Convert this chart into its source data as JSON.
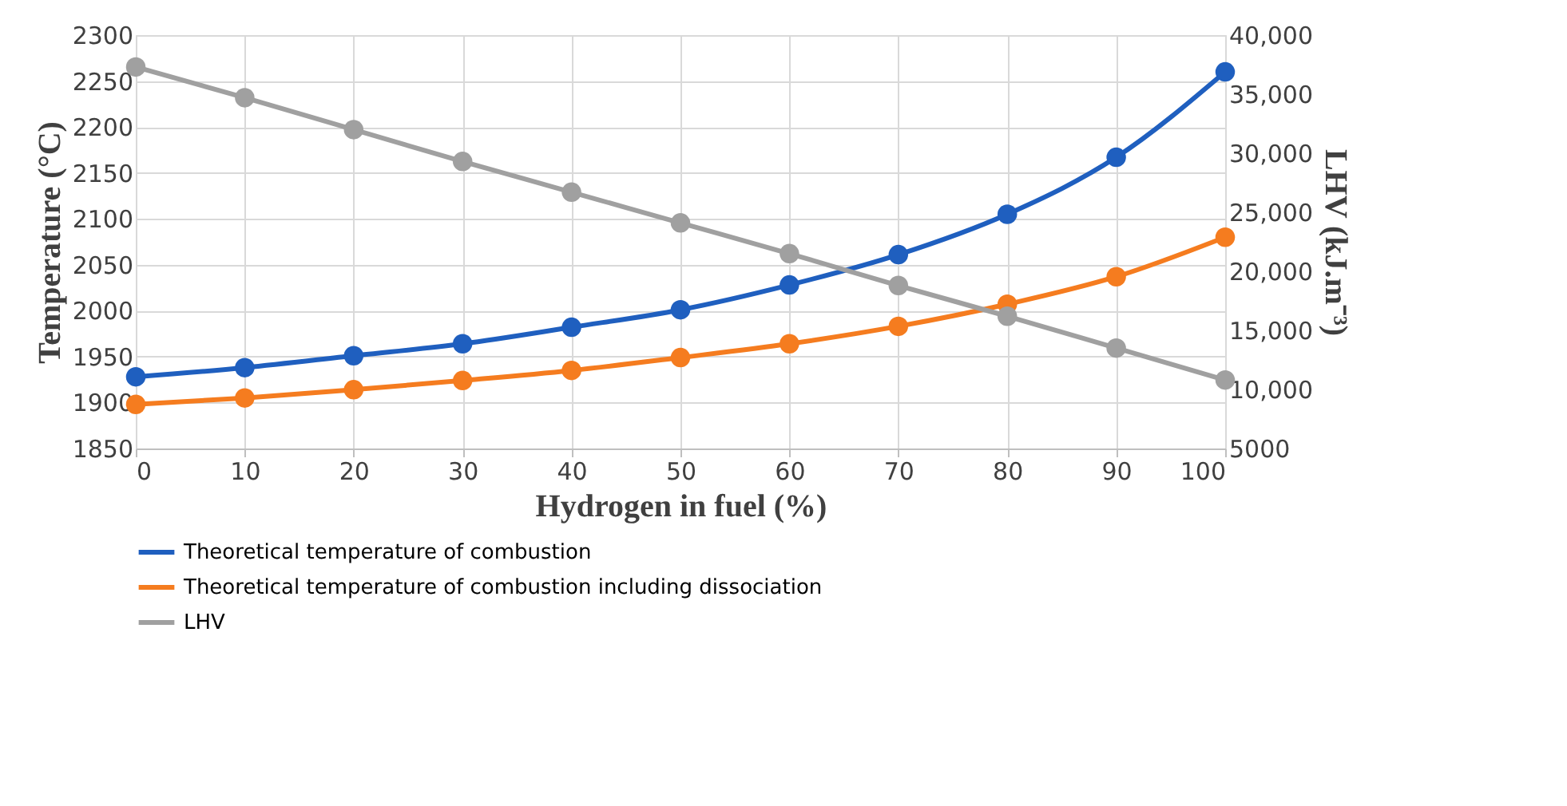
{
  "chart_data": {
    "type": "line",
    "xlabel": "Hydrogen in fuel (%)",
    "ylabel": "Temperature (°C)",
    "y2label": "LHV (kJ.m⁻³)",
    "x": [
      0,
      10,
      20,
      30,
      40,
      50,
      60,
      70,
      80,
      90,
      100
    ],
    "xlim": [
      0,
      100
    ],
    "xticks": [
      0,
      10,
      20,
      30,
      40,
      50,
      60,
      70,
      80,
      90,
      100
    ],
    "ylim": [
      1850,
      2300
    ],
    "yticks": [
      1850,
      1900,
      1950,
      2000,
      2050,
      2100,
      2150,
      2200,
      2250,
      2300
    ],
    "y2lim": [
      5000,
      40000
    ],
    "y2ticks": [
      5000,
      {
        "value": 10000,
        "label": "10,000"
      },
      {
        "value": 15000,
        "label": "15,000"
      },
      {
        "value": 20000,
        "label": "20,000"
      },
      {
        "value": 25000,
        "label": "25,000"
      },
      {
        "value": 30000,
        "label": "30,000"
      },
      {
        "value": 35000,
        "label": "35,000"
      },
      {
        "value": 40000,
        "label": "40,000"
      }
    ],
    "series": [
      {
        "name": "Theoretical temperature of combustion",
        "color": "#1f5fbf",
        "values": [
          1928,
          1938,
          1951,
          1964,
          1982,
          2001,
          2028,
          2061,
          2105,
          2167,
          2260
        ]
      },
      {
        "name": "Theoretical temperature of combustion including dissociation",
        "color": "#f57c1f",
        "values": [
          1898,
          1905,
          1914,
          1924,
          1935,
          1949,
          1964,
          1983,
          2007,
          2037,
          2080
        ]
      },
      {
        "name": "LHV",
        "color": "#a0a0a0",
        "axis": "y2",
        "values": [
          37300,
          34700,
          32000,
          29300,
          26700,
          24100,
          21500,
          18800,
          16200,
          13500,
          10800
        ]
      }
    ],
    "grid": true,
    "legend": "bottom",
    "marker": "circle",
    "line_style": "solid"
  }
}
